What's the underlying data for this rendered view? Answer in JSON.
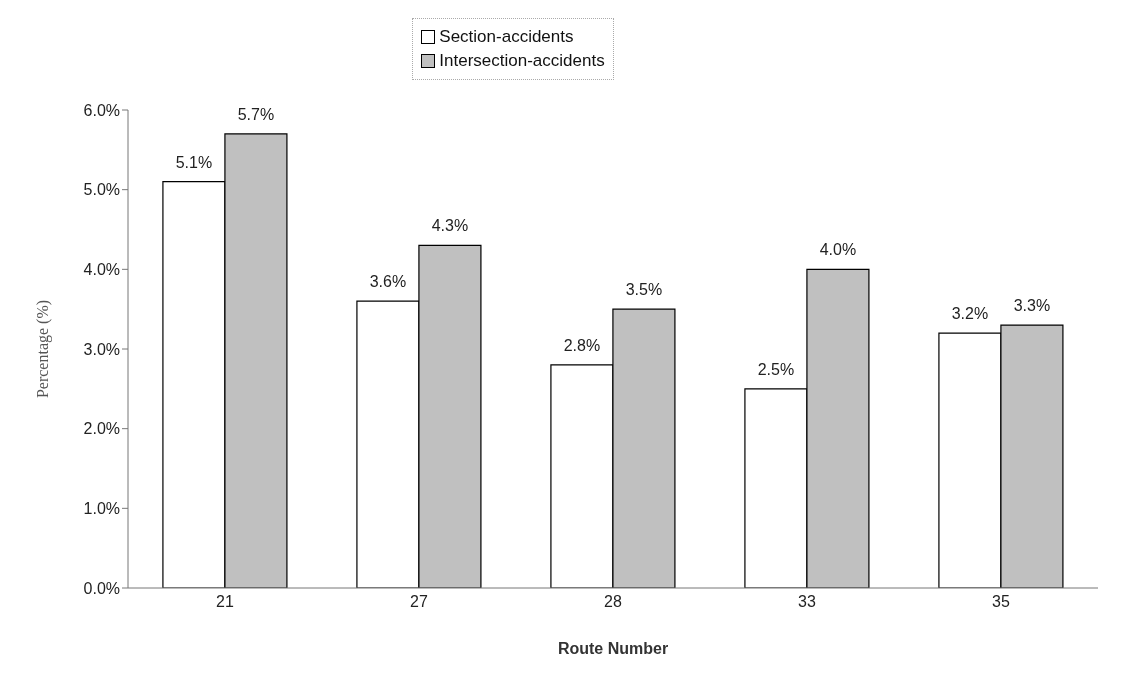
{
  "chart_data": {
    "type": "bar",
    "xlabel": "Route Number",
    "ylabel": "Percentage (%)",
    "categories": [
      "21",
      "27",
      "28",
      "33",
      "35"
    ],
    "series": [
      {
        "name": "Section-accidents",
        "color": "#ffffff",
        "values": [
          5.1,
          3.6,
          2.8,
          2.5,
          3.2
        ],
        "value_labels": [
          "5.1%",
          "3.6%",
          "2.8%",
          "2.5%",
          "3.2%"
        ]
      },
      {
        "name": "Intersection-accidents",
        "color": "#c0c0c0",
        "values": [
          5.7,
          4.3,
          3.5,
          4.0,
          3.3
        ],
        "value_labels": [
          "5.7%",
          "4.3%",
          "3.5%",
          "4.0%",
          "3.3%"
        ]
      }
    ],
    "ylim": [
      0,
      6
    ],
    "yticks": [
      {
        "value": 0,
        "label": "0.0%"
      },
      {
        "value": 1,
        "label": "1.0%"
      },
      {
        "value": 2,
        "label": "2.0%"
      },
      {
        "value": 3,
        "label": "3.0%"
      },
      {
        "value": 4,
        "label": "4.0%"
      },
      {
        "value": 5,
        "label": "5.0%"
      },
      {
        "value": 6,
        "label": "6.0%"
      }
    ],
    "grid": false,
    "legend": "top"
  }
}
